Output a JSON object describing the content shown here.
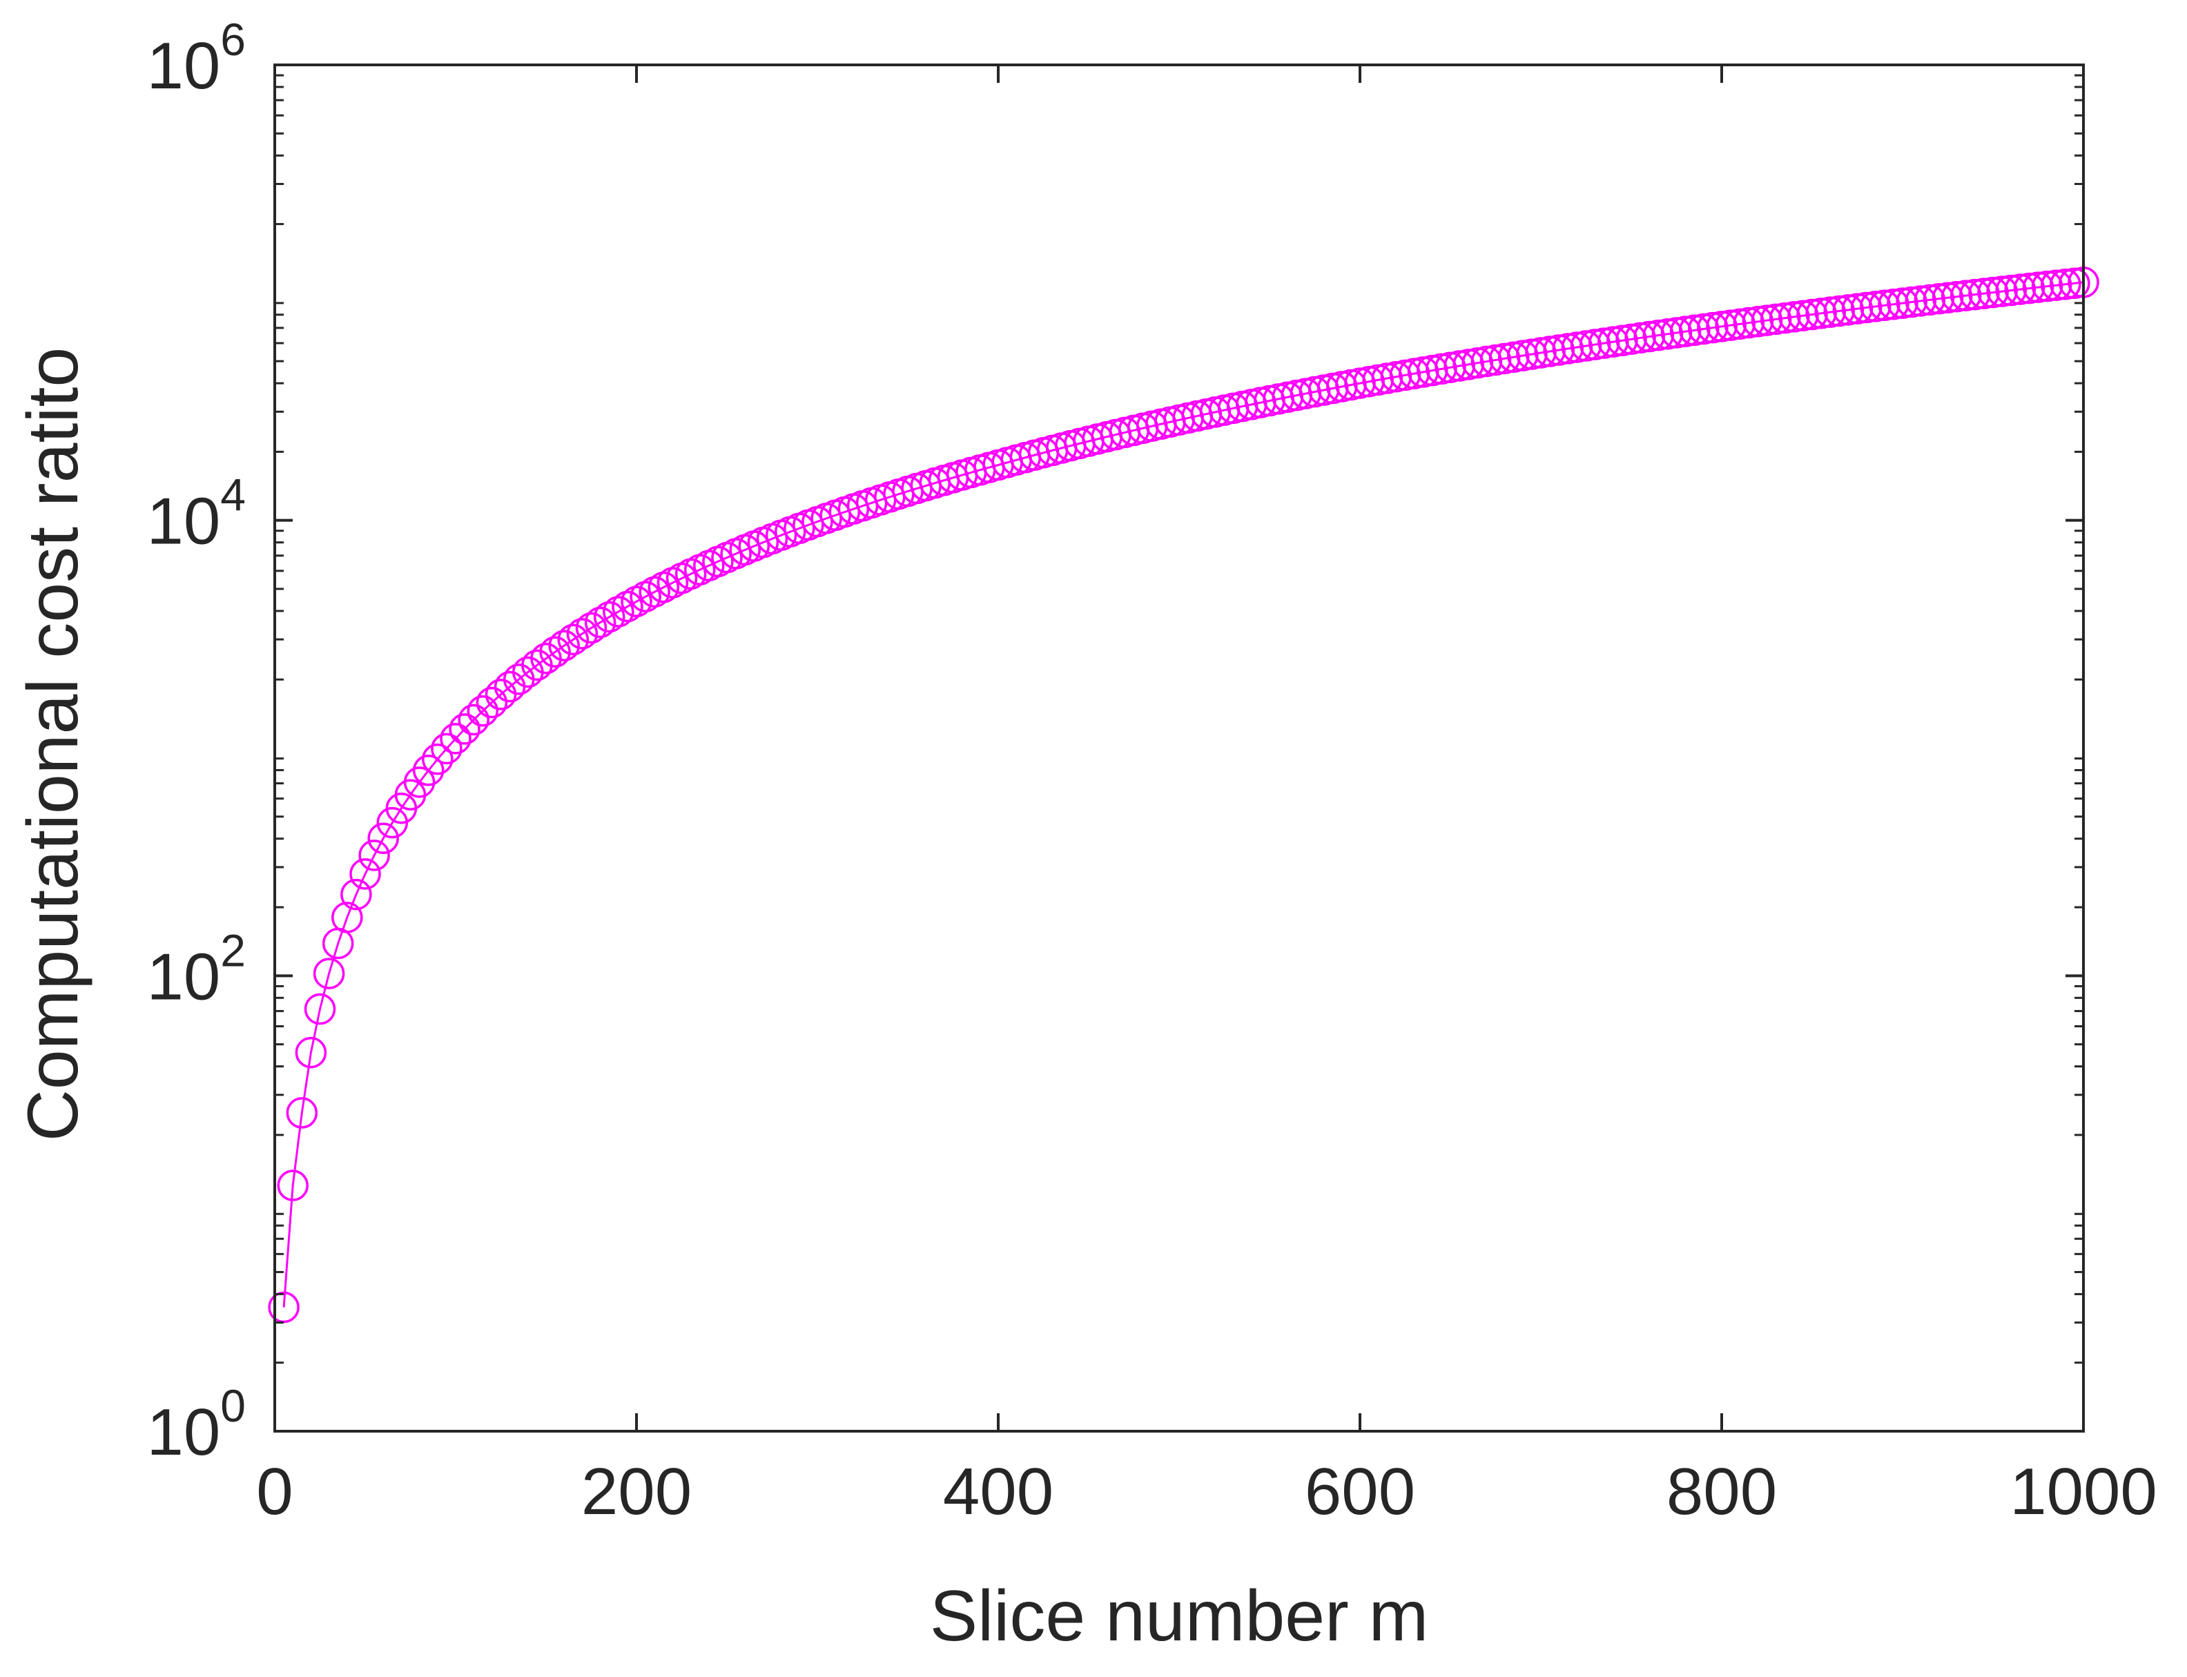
{
  "chart_data": {
    "type": "scatter",
    "xlabel": "Slice number m",
    "ylabel": "Computational cost ratito",
    "xlim": [
      0,
      1000
    ],
    "ylim": [
      1,
      1000000
    ],
    "yscale": "log",
    "grid": false,
    "xticks": [
      0,
      200,
      400,
      600,
      800,
      1000
    ],
    "xtick_labels": [
      "0",
      "200",
      "400",
      "600",
      "800",
      "1000"
    ],
    "yticks": [
      1,
      100,
      10000,
      1000000
    ],
    "ytick_labels": [
      {
        "base": "10",
        "exp": "0"
      },
      {
        "base": "10",
        "exp": "2"
      },
      {
        "base": "10",
        "exp": "4"
      },
      {
        "base": "10",
        "exp": "6"
      }
    ],
    "series": [
      {
        "marker": "circle-open",
        "line": "solid",
        "color": "#FF00FF",
        "x_start": 5,
        "x_step": 5,
        "x_end": 1000,
        "y_formula": "m^2 / 9 (approx.)",
        "sample_points": [
          {
            "x": 5,
            "y": 3.5
          },
          {
            "x": 10,
            "y": 12
          },
          {
            "x": 15,
            "y": 25
          },
          {
            "x": 20,
            "y": 46
          },
          {
            "x": 50,
            "y": 280
          },
          {
            "x": 100,
            "y": 1100
          },
          {
            "x": 200,
            "y": 4400
          },
          {
            "x": 400,
            "y": 17500
          },
          {
            "x": 600,
            "y": 40000
          },
          {
            "x": 800,
            "y": 71000
          },
          {
            "x": 1000,
            "y": 111000
          }
        ]
      }
    ]
  }
}
